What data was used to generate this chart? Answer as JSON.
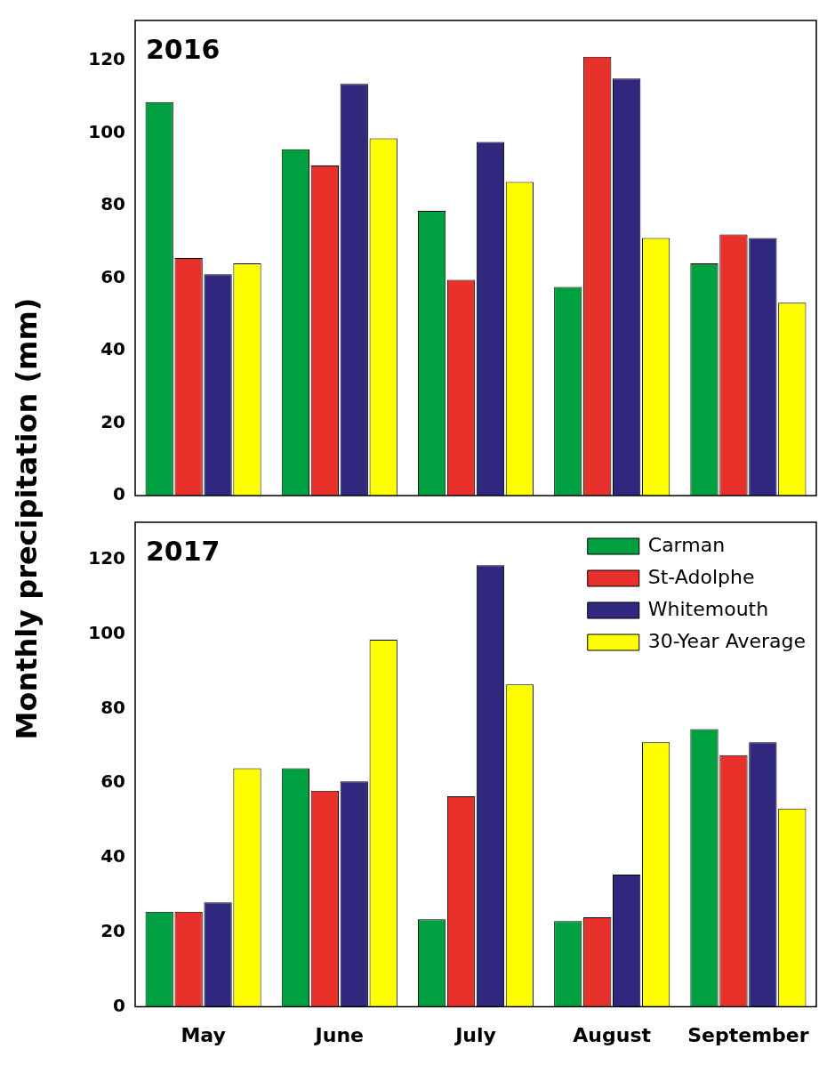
{
  "chart_data": [
    {
      "type": "bar",
      "ylabel": "Monthly precipitation (mm)",
      "annotations": [
        "2016"
      ],
      "categories": [
        null,
        null,
        null,
        null,
        null
      ],
      "series": [
        {
          "color": "#00a040",
          "values": [
            108.5,
            95.5,
            78.5,
            57.5,
            64
          ]
        },
        {
          "color": "#e8312a",
          "values": [
            65.5,
            91,
            59.5,
            121,
            72
          ]
        },
        {
          "color": "#30287f",
          "values": [
            61,
            113.5,
            97.5,
            115,
            71
          ]
        },
        {
          "color": "#ffff00",
          "values": [
            64,
            98.5,
            86.5,
            71,
            53.2
          ]
        }
      ],
      "ylim": [
        0,
        131
      ],
      "yticks": [
        0,
        20,
        40,
        60,
        80,
        100,
        120
      ],
      "tick_labels": "y",
      "grid": false,
      "legend": false
    },
    {
      "type": "bar",
      "annotations": [
        "2017"
      ],
      "categories": [
        "May",
        "June",
        "July",
        "August",
        "September"
      ],
      "series": [
        {
          "name": "Carman",
          "color": "#00a040",
          "values": [
            25.5,
            64,
            23.5,
            23,
            74.5
          ]
        },
        {
          "name": "St-Adolphe",
          "color": "#e8312a",
          "values": [
            25.5,
            58,
            56.5,
            24,
            67.5
          ]
        },
        {
          "name": "Whitemouth",
          "color": "#30287f",
          "values": [
            28,
            60.5,
            118.5,
            35.5,
            71
          ]
        },
        {
          "name": "30-Year Average",
          "color": "#ffff00",
          "values": [
            64,
            98.5,
            86.5,
            71,
            53.2
          ]
        }
      ],
      "ylim": [
        0,
        130
      ],
      "yticks": [
        0,
        20,
        40,
        60,
        80,
        100,
        120
      ],
      "grid": false,
      "legend": "top right"
    }
  ]
}
